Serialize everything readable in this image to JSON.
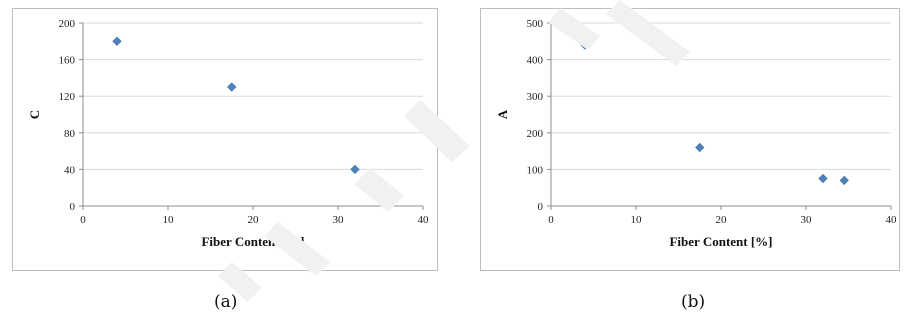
{
  "chart_data": [
    {
      "id": "a",
      "type": "scatter",
      "title": "",
      "xlabel": "Fiber Content [%]",
      "ylabel": "C",
      "xlim": [
        0,
        40
      ],
      "ylim": [
        0,
        200
      ],
      "xticks": [
        0,
        10,
        20,
        30,
        40
      ],
      "yticks": [
        0,
        40,
        80,
        120,
        160,
        200
      ],
      "grid": true,
      "marker_color": "#4f81bd",
      "marker": "diamond",
      "points": [
        {
          "x": 4,
          "y": 180
        },
        {
          "x": 17.5,
          "y": 130
        },
        {
          "x": 32,
          "y": 40
        },
        {
          "x": 34.5,
          "y": 27
        }
      ]
    },
    {
      "id": "b",
      "type": "scatter",
      "title": "",
      "xlabel": "Fiber Content [%]",
      "ylabel": "A",
      "xlim": [
        0,
        40
      ],
      "ylim": [
        0,
        500
      ],
      "xticks": [
        0,
        10,
        20,
        30,
        40
      ],
      "yticks": [
        0,
        100,
        200,
        300,
        400,
        500
      ],
      "grid": true,
      "marker_color": "#4f81bd",
      "marker": "diamond",
      "points": [
        {
          "x": 4,
          "y": 440
        },
        {
          "x": 17.5,
          "y": 160
        },
        {
          "x": 32,
          "y": 75
        },
        {
          "x": 34.5,
          "y": 70
        }
      ]
    }
  ],
  "captions": {
    "a": "(a)",
    "b": "(b)"
  }
}
